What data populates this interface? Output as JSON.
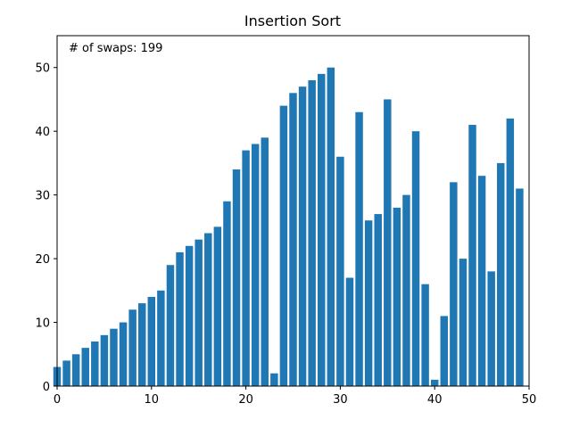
{
  "chart_data": {
    "type": "bar",
    "title": "Insertion Sort",
    "annotation": "# of swaps: 199",
    "x": [
      0,
      1,
      2,
      3,
      4,
      5,
      6,
      7,
      8,
      9,
      10,
      11,
      12,
      13,
      14,
      15,
      16,
      17,
      18,
      19,
      20,
      21,
      22,
      23,
      24,
      25,
      26,
      27,
      28,
      29,
      30,
      31,
      32,
      33,
      34,
      35,
      36,
      37,
      38,
      39,
      40,
      41,
      42,
      43,
      44,
      45,
      46,
      47,
      48,
      49
    ],
    "values": [
      3,
      4,
      5,
      6,
      7,
      8,
      9,
      10,
      12,
      13,
      14,
      15,
      19,
      21,
      22,
      23,
      24,
      25,
      29,
      34,
      37,
      38,
      39,
      2,
      44,
      46,
      47,
      48,
      49,
      50,
      36,
      17,
      43,
      26,
      27,
      45,
      28,
      30,
      40,
      16,
      1,
      11,
      32,
      20,
      41,
      33,
      18,
      35,
      42,
      31
    ],
    "bar_color": "#1f77b4",
    "xlim": [
      0,
      50
    ],
    "ylim": [
      0,
      55
    ],
    "xticks": [
      0,
      10,
      20,
      30,
      40,
      50
    ],
    "yticks": [
      0,
      10,
      20,
      30,
      40,
      50
    ],
    "grid": false
  }
}
